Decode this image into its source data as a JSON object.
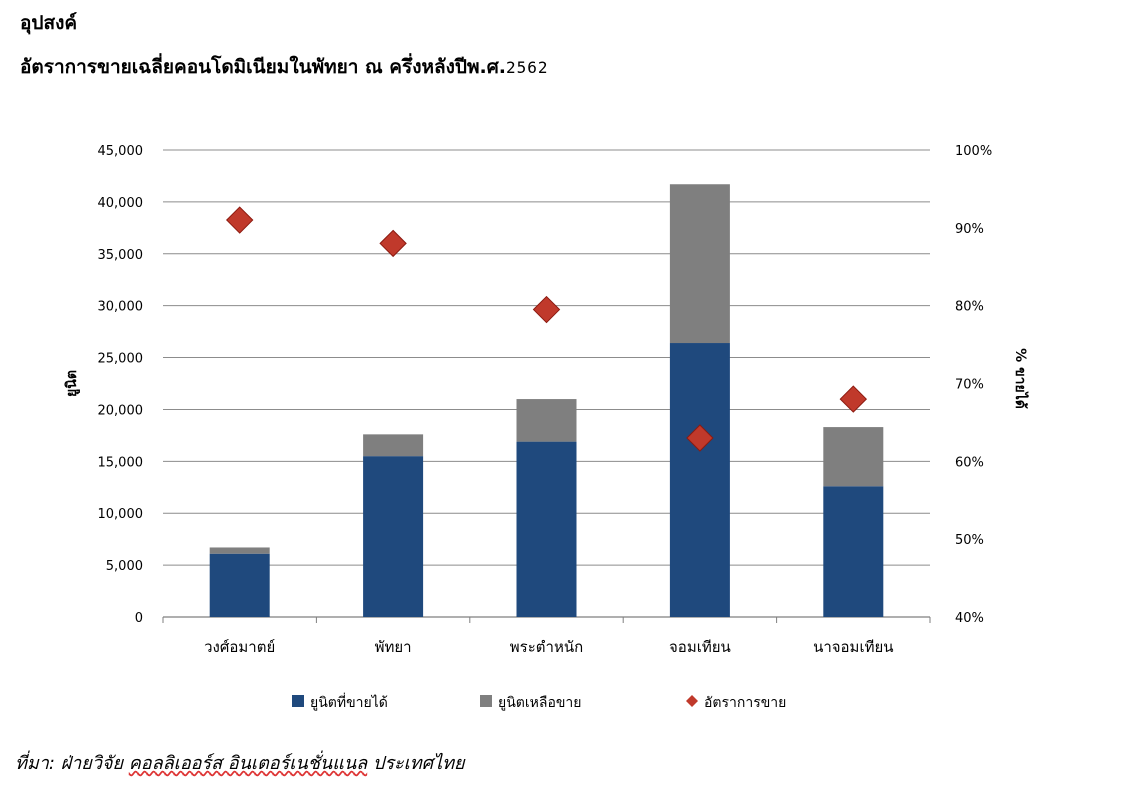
{
  "header": {
    "section": "อุปสงค์",
    "title": "อัตราการขายเฉลี่ยคอนโดมิเนียมในพัทยา  ณ ครึ่งหลังปีพ.ศ.",
    "year": "2562"
  },
  "chart_data": {
    "type": "bar",
    "stacked": true,
    "categories": [
      "วงศ์อมาตย์",
      "พัทยา",
      "พระตำหนัก",
      "จอมเทียน",
      "นาจอมเทียน"
    ],
    "series": [
      {
        "name": "ยูนิตที่ขายได้",
        "type": "bar",
        "axis": "left",
        "color": "#1f497d",
        "values": [
          6100,
          15500,
          16900,
          26400,
          12600
        ]
      },
      {
        "name": "ยูนิตเหลือขาย",
        "type": "bar",
        "axis": "left",
        "color": "#7f7f7f",
        "values": [
          600,
          2100,
          4100,
          15300,
          5700
        ]
      },
      {
        "name": "อัตราการขาย",
        "type": "scatter",
        "marker": "diamond",
        "axis": "right",
        "color": "#c0392b",
        "values": [
          0.91,
          0.88,
          0.795,
          0.63,
          0.68
        ]
      }
    ],
    "ylabel": "ยูนิต",
    "ylabel_right": "% ขายได้",
    "ylim": [
      0,
      45000
    ],
    "yticks": [
      0,
      5000,
      10000,
      15000,
      20000,
      25000,
      30000,
      35000,
      40000,
      45000
    ],
    "ytick_labels": [
      "0",
      "5,000",
      "10,000",
      "15,000",
      "20,000",
      "25,000",
      "30,000",
      "35,000",
      "40,000",
      "45,000"
    ],
    "ylim_right": [
      0.4,
      1.0
    ],
    "yticks_right": [
      0.4,
      0.5,
      0.6,
      0.7,
      0.8,
      0.9,
      1.0
    ],
    "ytick_labels_right": [
      "40%",
      "50%",
      "60%",
      "70%",
      "80%",
      "90%",
      "100%"
    ],
    "grid": true,
    "legend_position": "bottom"
  },
  "source": {
    "prefix": "ที่มา: ฝ่ายวิจัย ",
    "company": "คอลลิเออร์ส อินเตอร์เนชั่นแนล",
    "suffix": "  ประเทศไทย"
  }
}
